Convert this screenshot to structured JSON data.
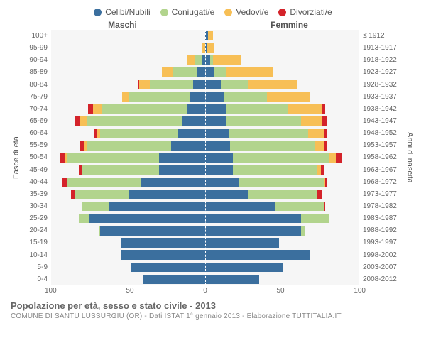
{
  "legend": [
    {
      "label": "Celibi/Nubili",
      "color": "#3b6f9e"
    },
    {
      "label": "Coniugati/e",
      "color": "#b2d48d"
    },
    {
      "label": "Vedovi/e",
      "color": "#f7bf56"
    },
    {
      "label": "Divorziati/e",
      "color": "#d4232a"
    }
  ],
  "headers": {
    "male": "Maschi",
    "female": "Femmine"
  },
  "ylabels": {
    "left": "Fasce di età",
    "right": "Anni di nascita"
  },
  "title": "Popolazione per età, sesso e stato civile - 2013",
  "subtitle": "COMUNE DI SANTU LUSSURGIU (OR) - Dati ISTAT 1° gennaio 2013 - Elaborazione TUTTITALIA.IT",
  "xmax": 100,
  "xticks": [
    "100",
    "50",
    "0",
    "50",
    "100"
  ],
  "colors": {
    "celibi": "#3b6f9e",
    "coniugati": "#b2d48d",
    "vedovi": "#f7bf56",
    "divorziati": "#d4232a",
    "plot_bg": "#f6f6f6",
    "grid": "#ffffff"
  },
  "rows": [
    {
      "age": "100+",
      "birth": "≤ 1912",
      "m": {
        "ce": 0,
        "co": 0,
        "ve": 0,
        "di": 0
      },
      "f": {
        "ce": 2,
        "co": 0,
        "ve": 3,
        "di": 0
      }
    },
    {
      "age": "95-99",
      "birth": "1913-1917",
      "m": {
        "ce": 0,
        "co": 0,
        "ve": 2,
        "di": 0
      },
      "f": {
        "ce": 1,
        "co": 0,
        "ve": 5,
        "di": 0
      }
    },
    {
      "age": "90-94",
      "birth": "1918-1922",
      "m": {
        "ce": 2,
        "co": 5,
        "ve": 5,
        "di": 0
      },
      "f": {
        "ce": 3,
        "co": 2,
        "ve": 18,
        "di": 0
      }
    },
    {
      "age": "85-89",
      "birth": "1923-1927",
      "m": {
        "ce": 5,
        "co": 16,
        "ve": 7,
        "di": 0
      },
      "f": {
        "ce": 6,
        "co": 8,
        "ve": 30,
        "di": 0
      }
    },
    {
      "age": "80-84",
      "birth": "1928-1932",
      "m": {
        "ce": 8,
        "co": 28,
        "ve": 7,
        "di": 1
      },
      "f": {
        "ce": 10,
        "co": 18,
        "ve": 32,
        "di": 0
      }
    },
    {
      "age": "75-79",
      "birth": "1933-1937",
      "m": {
        "ce": 10,
        "co": 40,
        "ve": 4,
        "di": 0
      },
      "f": {
        "ce": 12,
        "co": 28,
        "ve": 28,
        "di": 0
      }
    },
    {
      "age": "70-74",
      "birth": "1938-1942",
      "m": {
        "ce": 12,
        "co": 55,
        "ve": 6,
        "di": 3
      },
      "f": {
        "ce": 14,
        "co": 40,
        "ve": 22,
        "di": 2
      }
    },
    {
      "age": "65-69",
      "birth": "1943-1947",
      "m": {
        "ce": 15,
        "co": 62,
        "ve": 4,
        "di": 4
      },
      "f": {
        "ce": 14,
        "co": 48,
        "ve": 14,
        "di": 3
      }
    },
    {
      "age": "60-64",
      "birth": "1948-1952",
      "m": {
        "ce": 18,
        "co": 50,
        "ve": 2,
        "di": 2
      },
      "f": {
        "ce": 15,
        "co": 52,
        "ve": 10,
        "di": 2
      }
    },
    {
      "age": "55-59",
      "birth": "1953-1957",
      "m": {
        "ce": 22,
        "co": 55,
        "ve": 2,
        "di": 2
      },
      "f": {
        "ce": 16,
        "co": 55,
        "ve": 6,
        "di": 2
      }
    },
    {
      "age": "50-54",
      "birth": "1958-1962",
      "m": {
        "ce": 30,
        "co": 60,
        "ve": 1,
        "di": 3
      },
      "f": {
        "ce": 18,
        "co": 62,
        "ve": 5,
        "di": 4
      }
    },
    {
      "age": "45-49",
      "birth": "1963-1967",
      "m": {
        "ce": 30,
        "co": 50,
        "ve": 0,
        "di": 2
      },
      "f": {
        "ce": 18,
        "co": 55,
        "ve": 2,
        "di": 2
      }
    },
    {
      "age": "40-44",
      "birth": "1968-1972",
      "m": {
        "ce": 42,
        "co": 48,
        "ve": 0,
        "di": 3
      },
      "f": {
        "ce": 22,
        "co": 55,
        "ve": 1,
        "di": 1
      }
    },
    {
      "age": "35-39",
      "birth": "1973-1977",
      "m": {
        "ce": 50,
        "co": 35,
        "ve": 0,
        "di": 2
      },
      "f": {
        "ce": 28,
        "co": 45,
        "ve": 0,
        "di": 3
      }
    },
    {
      "age": "30-34",
      "birth": "1978-1982",
      "m": {
        "ce": 62,
        "co": 18,
        "ve": 0,
        "di": 0
      },
      "f": {
        "ce": 45,
        "co": 32,
        "ve": 0,
        "di": 1
      }
    },
    {
      "age": "25-29",
      "birth": "1983-1987",
      "m": {
        "ce": 75,
        "co": 7,
        "ve": 0,
        "di": 0
      },
      "f": {
        "ce": 62,
        "co": 18,
        "ve": 0,
        "di": 0
      }
    },
    {
      "age": "20-24",
      "birth": "1988-1992",
      "m": {
        "ce": 68,
        "co": 1,
        "ve": 0,
        "di": 0
      },
      "f": {
        "ce": 62,
        "co": 3,
        "ve": 0,
        "di": 0
      }
    },
    {
      "age": "15-19",
      "birth": "1993-1997",
      "m": {
        "ce": 55,
        "co": 0,
        "ve": 0,
        "di": 0
      },
      "f": {
        "ce": 48,
        "co": 0,
        "ve": 0,
        "di": 0
      }
    },
    {
      "age": "10-14",
      "birth": "1998-2002",
      "m": {
        "ce": 55,
        "co": 0,
        "ve": 0,
        "di": 0
      },
      "f": {
        "ce": 68,
        "co": 0,
        "ve": 0,
        "di": 0
      }
    },
    {
      "age": "5-9",
      "birth": "2003-2007",
      "m": {
        "ce": 48,
        "co": 0,
        "ve": 0,
        "di": 0
      },
      "f": {
        "ce": 50,
        "co": 0,
        "ve": 0,
        "di": 0
      }
    },
    {
      "age": "0-4",
      "birth": "2008-2012",
      "m": {
        "ce": 40,
        "co": 0,
        "ve": 0,
        "di": 0
      },
      "f": {
        "ce": 35,
        "co": 0,
        "ve": 0,
        "di": 0
      }
    }
  ]
}
